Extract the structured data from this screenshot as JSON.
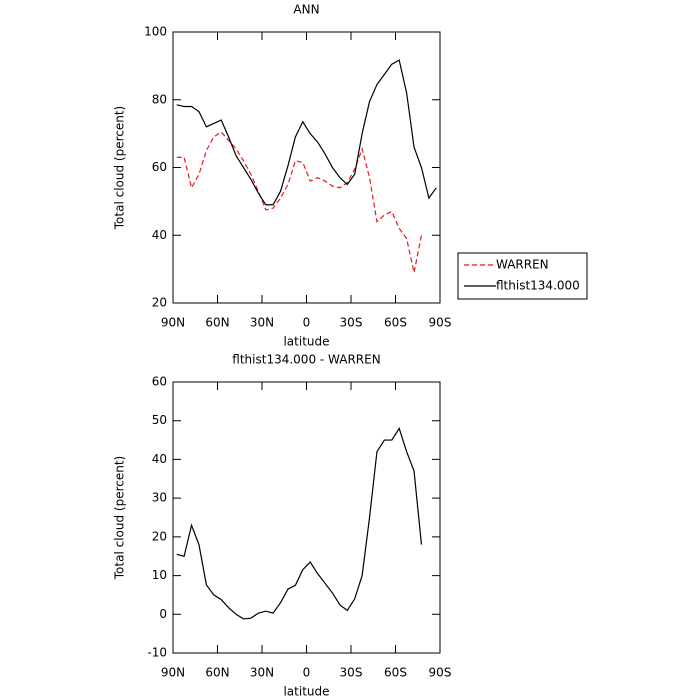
{
  "chart_data": [
    {
      "type": "line",
      "title": "ANN",
      "xlabel": "latitude",
      "ylabel": "Total cloud (percent)",
      "x": [
        87.5,
        82.5,
        77.5,
        72.5,
        67.5,
        62.5,
        57.5,
        52.5,
        47.5,
        42.5,
        37.5,
        32.5,
        27.5,
        22.5,
        17.5,
        12.5,
        7.5,
        2.5,
        -2.5,
        -7.5,
        -12.5,
        -17.5,
        -22.5,
        -27.5,
        -32.5,
        -37.5,
        -42.5,
        -47.5,
        -52.5,
        -57.5,
        -62.5,
        -67.5,
        -72.5,
        -77.5,
        -82.5,
        -87.5
      ],
      "xlim": [
        90,
        -90
      ],
      "xticks": [
        {
          "value": 90,
          "label": "90N"
        },
        {
          "value": 60,
          "label": "60N"
        },
        {
          "value": 30,
          "label": "30N"
        },
        0,
        {
          "value": -30,
          "label": "30S"
        },
        {
          "value": -60,
          "label": "60S"
        },
        {
          "value": -90,
          "label": "90S"
        }
      ],
      "ylim": [
        20,
        100
      ],
      "yticks": [
        20,
        40,
        60,
        80,
        100
      ],
      "legend": "right",
      "series": [
        {
          "name": "WARREN",
          "color": "#e8191e",
          "linestyle": "dashed",
          "values": [
            63,
            63,
            54,
            58,
            65,
            69,
            70.5,
            68,
            65.5,
            62,
            58,
            53,
            47.5,
            48,
            51,
            55,
            62,
            61.5,
            56,
            57,
            56,
            54.5,
            54,
            55.5,
            59.5,
            65.5,
            57,
            44,
            46,
            47,
            42,
            39,
            29,
            40,
            null,
            null
          ]
        },
        {
          "name": "flthist134.000",
          "color": "#000000",
          "linestyle": "solid",
          "values": [
            78.5,
            78,
            78,
            76.5,
            72,
            73,
            74,
            69,
            63.5,
            60,
            56.5,
            52.5,
            49,
            49,
            53,
            60.5,
            69,
            73.5,
            70,
            67.5,
            64,
            60,
            57,
            55,
            58,
            70,
            79.5,
            84.5,
            87.5,
            90.5,
            91.7,
            82,
            66,
            60,
            51,
            54
          ]
        }
      ]
    },
    {
      "type": "line",
      "title": "flthist134.000 - WARREN",
      "xlabel": "latitude",
      "ylabel": "Total cloud (percent)",
      "x": [
        87.5,
        82.5,
        77.5,
        72.5,
        67.5,
        62.5,
        57.5,
        52.5,
        47.5,
        42.5,
        37.5,
        32.5,
        27.5,
        22.5,
        17.5,
        12.5,
        7.5,
        2.5,
        -2.5,
        -7.5,
        -12.5,
        -17.5,
        -22.5,
        -27.5,
        -32.5,
        -37.5,
        -42.5,
        -47.5,
        -52.5,
        -57.5,
        -62.5,
        -67.5,
        -72.5,
        -77.5,
        -82.5,
        -87.5
      ],
      "xlim": [
        90,
        -90
      ],
      "xticks": [
        {
          "value": 90,
          "label": "90N"
        },
        {
          "value": 60,
          "label": "60N"
        },
        {
          "value": 30,
          "label": "30N"
        },
        0,
        {
          "value": -30,
          "label": "30S"
        },
        {
          "value": -60,
          "label": "60S"
        },
        {
          "value": -90,
          "label": "90S"
        }
      ],
      "ylim": [
        -10,
        60
      ],
      "yticks": [
        -10,
        0,
        10,
        20,
        30,
        40,
        50,
        60
      ],
      "color": "#000000",
      "values": [
        15.5,
        15,
        23,
        18,
        7.6,
        5,
        3.8,
        1.7,
        0,
        -1.2,
        -1,
        0.3,
        0.8,
        0.3,
        3,
        6.5,
        7.5,
        11.5,
        13.5,
        10.5,
        8,
        5.5,
        2.4,
        1,
        4,
        10,
        25,
        42,
        45,
        45,
        48,
        42,
        37,
        18,
        null,
        null
      ]
    }
  ]
}
